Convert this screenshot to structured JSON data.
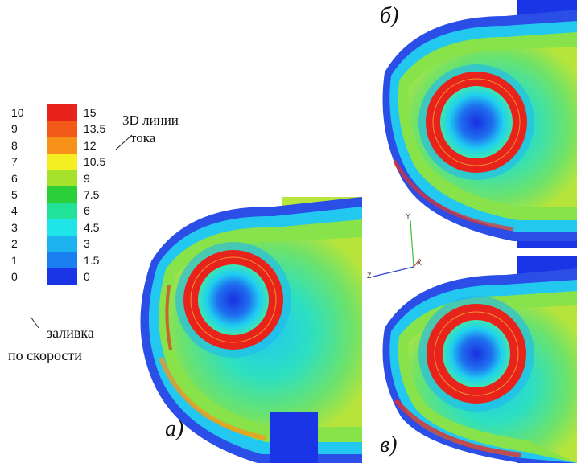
{
  "legend": {
    "velocity_fill_values": [
      "10",
      "9",
      "8",
      "7",
      "6",
      "5",
      "4",
      "3",
      "2",
      "1",
      "0"
    ],
    "streamline_values": [
      "15",
      "13.5",
      "12",
      "10.5",
      "9",
      "7.5",
      "6",
      "4.5",
      "3",
      "1.5",
      "0"
    ],
    "colors": [
      "#e8231c",
      "#f25a1a",
      "#f7911a",
      "#f4ee22",
      "#a6e22c",
      "#2bcf3a",
      "#22e29a",
      "#1fe4e8",
      "#1db2f0",
      "#1a7ff0",
      "#1a35e6"
    ],
    "streamline_caption_line1": "3D линии",
    "streamline_caption_line2": "тока",
    "fill_caption_line1": "заливка",
    "fill_caption_line2": "по скорости"
  },
  "panels": {
    "a": "а)",
    "b": "б)",
    "c": "в)"
  },
  "axes": {
    "y": "Y",
    "x": "X",
    "z": "Z"
  }
}
